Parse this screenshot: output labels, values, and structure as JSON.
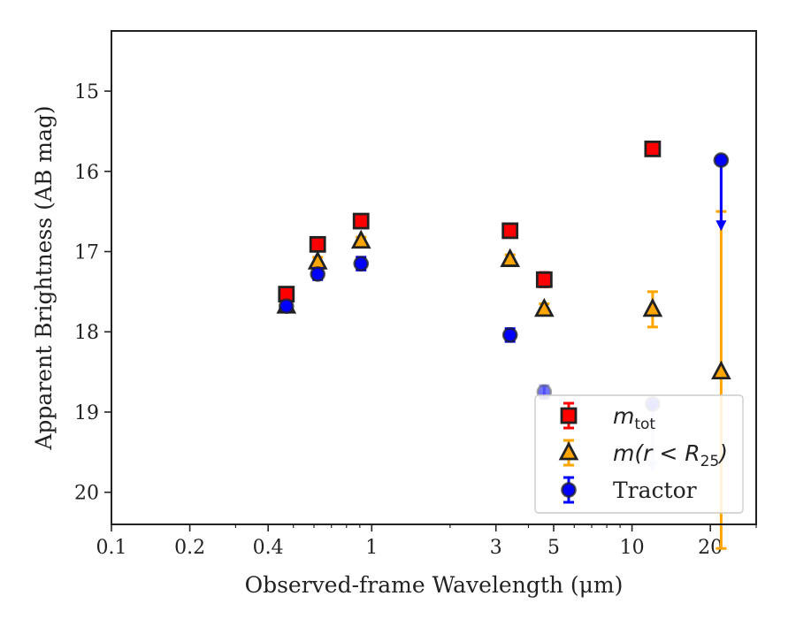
{
  "chart_data": {
    "type": "scatter",
    "title": "",
    "xlabel": "Observed-frame Wavelength (μm)",
    "ylabel": "Apparent Brightness (AB mag)",
    "x_scale": "log",
    "y_inverted": true,
    "xlim": [
      0.1,
      30
    ],
    "ylim": [
      14.25,
      20.4
    ],
    "x_ticks": [
      {
        "value": 0.1,
        "label": "0.1"
      },
      {
        "value": 0.2,
        "label": "0.2"
      },
      {
        "value": 0.4,
        "label": "0.4"
      },
      {
        "value": 1,
        "label": "1"
      },
      {
        "value": 3,
        "label": "3"
      },
      {
        "value": 5,
        "label": "5"
      },
      {
        "value": 10,
        "label": "10"
      },
      {
        "value": 20,
        "label": "20"
      }
    ],
    "y_ticks": [
      15,
      16,
      17,
      18,
      19,
      20
    ],
    "grid": false,
    "legend_position": "lower-right",
    "series": [
      {
        "name": "m_tot",
        "legend_label": "m",
        "legend_sub": "tot",
        "marker": "square",
        "color": "#ff0000",
        "error_color": "#ff0000",
        "points": [
          {
            "x": 0.47,
            "y": 17.53,
            "err": 0.08
          },
          {
            "x": 0.62,
            "y": 16.91,
            "err": 0.07
          },
          {
            "x": 0.91,
            "y": 16.62,
            "err": 0.06
          },
          {
            "x": 3.4,
            "y": 16.74,
            "err": 0.07
          },
          {
            "x": 4.6,
            "y": 17.35,
            "err": 0.09
          },
          {
            "x": 12.0,
            "y": 15.72,
            "err": 0.06
          }
        ]
      },
      {
        "name": "m(r < R25)",
        "legend_label": "m(r < R",
        "legend_sub": "25",
        "legend_suffix": ")",
        "marker": "triangle",
        "color": "#ffa500",
        "error_color": "#ffa500",
        "points": [
          {
            "x": 0.47,
            "y": 17.68,
            "err": 0.06
          },
          {
            "x": 0.62,
            "y": 17.13,
            "err": 0.06
          },
          {
            "x": 0.91,
            "y": 16.87,
            "err": 0.05
          },
          {
            "x": 3.4,
            "y": 17.1,
            "err": 0.06
          },
          {
            "x": 4.6,
            "y": 17.72,
            "err": 0.07
          },
          {
            "x": 12.0,
            "y": 17.72,
            "err_low": 0.22,
            "err_high": 0.22
          },
          {
            "x": 22.0,
            "y": 18.5,
            "err_low": 2.2,
            "err_high": 2.0
          }
        ]
      },
      {
        "name": "Tractor",
        "legend_label": "Tractor",
        "marker": "circle",
        "color": "#0000ff",
        "error_color": "#0000ff",
        "points": [
          {
            "x": 0.47,
            "y": 17.68,
            "err": 0.05
          },
          {
            "x": 0.62,
            "y": 17.28,
            "err": 0.07
          },
          {
            "x": 0.91,
            "y": 17.15,
            "err": 0.08
          },
          {
            "x": 3.4,
            "y": 18.04,
            "err": 0.08
          },
          {
            "x": 4.6,
            "y": 18.75,
            "err": 0.08,
            "faded": true
          },
          {
            "x": 12.0,
            "y": 18.9,
            "upper_limit_to": 19.7,
            "faded": true
          },
          {
            "x": 22.0,
            "y": 15.86,
            "upper_limit_to": 16.7
          }
        ]
      }
    ]
  }
}
